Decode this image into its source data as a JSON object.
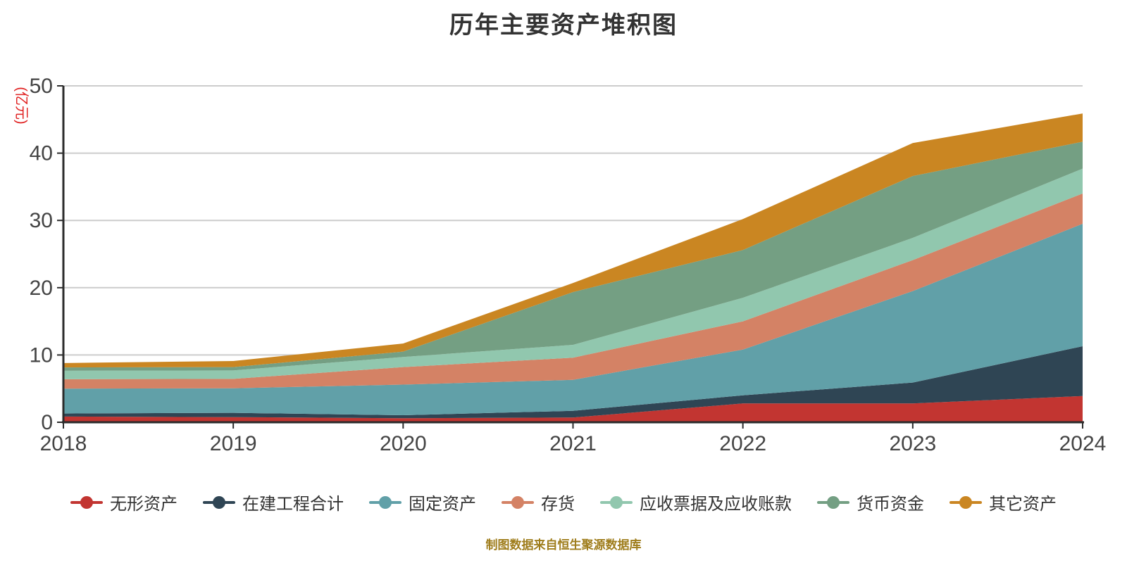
{
  "title": "历年主要资产堆积图",
  "y_axis": {
    "unit_label": "(亿元)",
    "ticks": [
      0,
      10,
      20,
      30,
      40,
      50
    ]
  },
  "x_axis": {
    "ticks": [
      "2018",
      "2019",
      "2020",
      "2021",
      "2022",
      "2023",
      "2024"
    ]
  },
  "footer": {
    "source_note": "制图数据来自恒生聚源数据库"
  },
  "styles": {
    "background": "#ffffff",
    "title_color": "#333333",
    "unit_label_color": "#e02020",
    "footer_color": "#9f7d1c",
    "grid_color": "#cccccc",
    "axis_color": "#2b2b2b",
    "tick_label_color": "#444444",
    "legend_label_color": "#333333"
  },
  "chart_data": {
    "type": "area",
    "stacked": true,
    "title": "历年主要资产堆积图",
    "xlabel": "",
    "ylabel": "(亿元)",
    "ylim": [
      0,
      50
    ],
    "grid": true,
    "legend_position": "bottom",
    "categories": [
      2018,
      2019,
      2020,
      2021,
      2022,
      2023,
      2024
    ],
    "series": [
      {
        "name": "无形资产",
        "color": "#c23531",
        "values": [
          0.85,
          0.76,
          0.6,
          0.7,
          2.8,
          2.8,
          3.9
        ]
      },
      {
        "name": "在建工程合计",
        "color": "#2f4554",
        "values": [
          0.45,
          0.64,
          0.45,
          1.0,
          1.2,
          3.1,
          7.4
        ]
      },
      {
        "name": "固定资产",
        "color": "#61a0a8",
        "values": [
          3.7,
          3.65,
          4.55,
          4.6,
          6.8,
          13.6,
          18.2
        ]
      },
      {
        "name": "存货",
        "color": "#d48265",
        "values": [
          1.4,
          1.4,
          2.6,
          3.3,
          4.2,
          4.6,
          4.5
        ]
      },
      {
        "name": "应收票据及应收账款",
        "color": "#91c7ae",
        "values": [
          1.25,
          1.25,
          1.5,
          1.9,
          3.5,
          3.3,
          3.7
        ]
      },
      {
        "name": "货币资金",
        "color": "#749f83",
        "values": [
          0.5,
          0.5,
          0.8,
          7.85,
          7.1,
          9.2,
          4.0
        ]
      },
      {
        "name": "其它资产",
        "color": "#ca8622",
        "values": [
          0.65,
          0.9,
          1.2,
          1.35,
          4.6,
          4.9,
          4.2
        ]
      }
    ],
    "stack_totals": [
      8.8,
      9.1,
      11.7,
      20.7,
      30.2,
      41.5,
      45.9
    ]
  }
}
